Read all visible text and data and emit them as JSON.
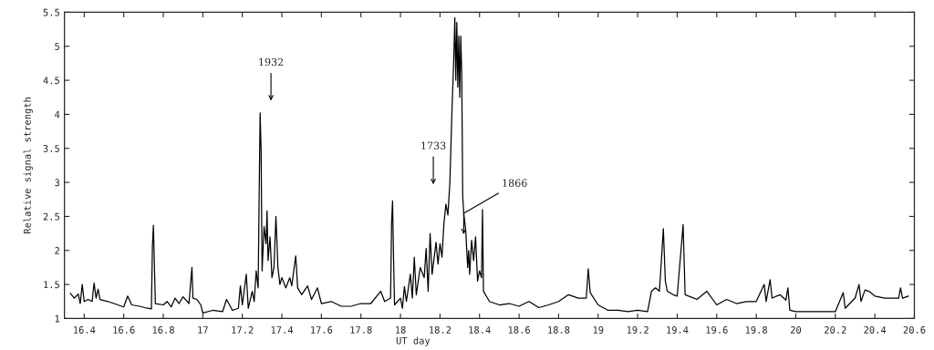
{
  "chart_data": {
    "type": "line",
    "xlabel": "UT day",
    "ylabel": "Relative signal strength",
    "xlim": [
      16.3,
      20.6
    ],
    "ylim": [
      1,
      5.5
    ],
    "xticks": [
      16.4,
      16.6,
      16.8,
      17,
      17.2,
      17.4,
      17.6,
      17.8,
      18,
      18.2,
      18.4,
      18.6,
      18.8,
      19,
      19.2,
      19.4,
      19.6,
      19.8,
      20,
      20.2,
      20.4,
      20.6
    ],
    "yticks": [
      1,
      1.5,
      2,
      2.5,
      3,
      3.5,
      4,
      4.5,
      5,
      5.5
    ],
    "grid": false,
    "legend": false,
    "marker": "none",
    "line_style": "solid",
    "series": [
      {
        "color": "#000000",
        "x": [
          16.33,
          16.35,
          16.37,
          16.38,
          16.39,
          16.4,
          16.42,
          16.44,
          16.45,
          16.46,
          16.47,
          16.48,
          16.52,
          16.55,
          16.6,
          16.62,
          16.64,
          16.68,
          16.72,
          16.74,
          16.745,
          16.75,
          16.755,
          16.76,
          16.8,
          16.82,
          16.84,
          16.86,
          16.88,
          16.9,
          16.93,
          16.945,
          16.95,
          16.97,
          16.99,
          17.0,
          17.05,
          17.1,
          17.12,
          17.15,
          17.18,
          17.19,
          17.2,
          17.22,
          17.23,
          17.25,
          17.26,
          17.27,
          17.28,
          17.285,
          17.29,
          17.295,
          17.3,
          17.31,
          17.32,
          17.325,
          17.33,
          17.34,
          17.35,
          17.36,
          17.37,
          17.38,
          17.39,
          17.4,
          17.42,
          17.44,
          17.45,
          17.47,
          17.48,
          17.5,
          17.53,
          17.55,
          17.58,
          17.6,
          17.65,
          17.7,
          17.75,
          17.8,
          17.85,
          17.9,
          17.92,
          17.95,
          17.955,
          17.96,
          17.965,
          17.97,
          18.0,
          18.01,
          18.02,
          18.03,
          18.05,
          18.06,
          18.07,
          18.08,
          18.1,
          18.12,
          18.13,
          18.14,
          18.15,
          18.16,
          18.18,
          18.19,
          18.2,
          18.21,
          18.22,
          18.23,
          18.24,
          18.25,
          18.26,
          18.27,
          18.275,
          18.28,
          18.285,
          18.29,
          18.295,
          18.3,
          18.305,
          18.31,
          18.315,
          18.32,
          18.33,
          18.34,
          18.345,
          18.35,
          18.36,
          18.37,
          18.38,
          18.39,
          18.4,
          18.41,
          18.415,
          18.42,
          18.43,
          18.45,
          18.5,
          18.55,
          18.6,
          18.65,
          18.7,
          18.75,
          18.8,
          18.85,
          18.9,
          18.94,
          18.95,
          18.96,
          19.0,
          19.05,
          19.1,
          19.15,
          19.2,
          19.25,
          19.27,
          19.29,
          19.31,
          19.32,
          19.33,
          19.34,
          19.35,
          19.38,
          19.4,
          19.43,
          19.44,
          19.5,
          19.55,
          19.6,
          19.65,
          19.7,
          19.75,
          19.8,
          19.84,
          19.85,
          19.87,
          19.88,
          19.92,
          19.95,
          19.96,
          19.97,
          20.0,
          20.1,
          20.2,
          20.24,
          20.25,
          20.3,
          20.32,
          20.33,
          20.35,
          20.37,
          20.4,
          20.45,
          20.52,
          20.53,
          20.54,
          20.57
        ],
        "values": [
          1.37,
          1.3,
          1.36,
          1.22,
          1.5,
          1.25,
          1.28,
          1.25,
          1.52,
          1.3,
          1.43,
          1.28,
          1.25,
          1.22,
          1.17,
          1.33,
          1.2,
          1.18,
          1.15,
          1.14,
          2.05,
          2.37,
          1.8,
          1.22,
          1.2,
          1.25,
          1.17,
          1.3,
          1.22,
          1.32,
          1.22,
          1.75,
          1.3,
          1.28,
          1.2,
          1.08,
          1.12,
          1.1,
          1.28,
          1.12,
          1.15,
          1.48,
          1.2,
          1.65,
          1.15,
          1.4,
          1.25,
          1.7,
          1.45,
          2.78,
          4.02,
          3.45,
          1.7,
          2.35,
          2.1,
          2.58,
          1.85,
          2.2,
          1.6,
          1.75,
          2.5,
          1.75,
          1.5,
          1.6,
          1.45,
          1.6,
          1.48,
          1.92,
          1.45,
          1.35,
          1.48,
          1.28,
          1.45,
          1.22,
          1.25,
          1.18,
          1.18,
          1.22,
          1.22,
          1.4,
          1.25,
          1.3,
          2.4,
          2.73,
          1.9,
          1.2,
          1.3,
          1.15,
          1.47,
          1.25,
          1.65,
          1.3,
          1.9,
          1.35,
          1.75,
          1.6,
          2.03,
          1.4,
          2.25,
          1.65,
          2.12,
          1.8,
          2.1,
          1.9,
          2.4,
          2.68,
          2.52,
          3.0,
          4.0,
          4.85,
          5.42,
          4.5,
          5.35,
          4.4,
          5.15,
          4.25,
          5.15,
          4.6,
          2.8,
          2.55,
          2.3,
          1.75,
          2.0,
          1.65,
          2.15,
          1.85,
          2.2,
          1.55,
          1.7,
          1.6,
          2.6,
          1.4,
          1.35,
          1.25,
          1.2,
          1.22,
          1.18,
          1.25,
          1.16,
          1.2,
          1.25,
          1.35,
          1.3,
          1.3,
          1.73,
          1.38,
          1.2,
          1.12,
          1.12,
          1.1,
          1.12,
          1.1,
          1.4,
          1.45,
          1.4,
          1.85,
          2.32,
          1.55,
          1.4,
          1.35,
          1.33,
          2.38,
          1.35,
          1.28,
          1.4,
          1.2,
          1.28,
          1.22,
          1.25,
          1.25,
          1.5,
          1.25,
          1.57,
          1.3,
          1.35,
          1.27,
          1.45,
          1.12,
          1.1,
          1.1,
          1.1,
          1.38,
          1.15,
          1.3,
          1.5,
          1.25,
          1.42,
          1.4,
          1.33,
          1.3,
          1.3,
          1.45,
          1.3,
          1.33
        ]
      }
    ],
    "annotations": [
      "1932",
      "1733",
      {
        "text": "1866",
        "x": 18.32,
        "y": 2.2
      }
    ]
  }
}
